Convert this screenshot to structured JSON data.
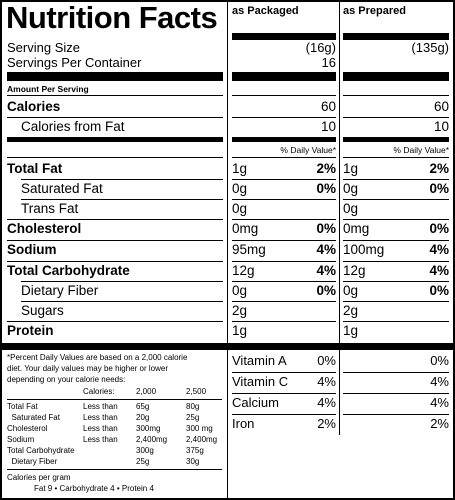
{
  "title": "Nutrition Facts",
  "columns": {
    "packaged": "as Packaged",
    "prepared": "as Prepared"
  },
  "serving": {
    "size_label": "Serving Size",
    "size_packaged": "(16g)",
    "size_prepared": "(135g)",
    "per_container_label": "Servings Per Container",
    "per_container_value": "16"
  },
  "amount_per_serving": "Amount Per Serving",
  "calories": {
    "label": "Calories",
    "packaged": "60",
    "prepared": "60"
  },
  "calories_fat": {
    "label": "Calories from Fat",
    "packaged": "10",
    "prepared": "10"
  },
  "dv_header": "% Daily Value*",
  "nutrients": [
    {
      "label": "Total Fat",
      "bold": true,
      "indent": false,
      "p_amt": "1g",
      "p_dv": "2%",
      "q_amt": "1g",
      "q_dv": "2%"
    },
    {
      "label": "Saturated Fat",
      "bold": false,
      "indent": true,
      "p_amt": "0g",
      "p_dv": "0%",
      "q_amt": "0g",
      "q_dv": "0%"
    },
    {
      "label": "Trans Fat",
      "bold": false,
      "indent": true,
      "p_amt": "0g",
      "p_dv": "",
      "q_amt": "0g",
      "q_dv": ""
    },
    {
      "label": "Cholesterol",
      "bold": true,
      "indent": false,
      "p_amt": "0mg",
      "p_dv": "0%",
      "q_amt": "0mg",
      "q_dv": "0%"
    },
    {
      "label": "Sodium",
      "bold": true,
      "indent": false,
      "p_amt": "95mg",
      "p_dv": "4%",
      "q_amt": "100mg",
      "q_dv": "4%"
    },
    {
      "label": "Total Carbohydrate",
      "bold": true,
      "indent": false,
      "p_amt": "12g",
      "p_dv": "4%",
      "q_amt": "12g",
      "q_dv": "4%"
    },
    {
      "label": "Dietary Fiber",
      "bold": false,
      "indent": true,
      "p_amt": "0g",
      "p_dv": "0%",
      "q_amt": "0g",
      "q_dv": "0%"
    },
    {
      "label": "Sugars",
      "bold": false,
      "indent": true,
      "p_amt": "2g",
      "p_dv": "",
      "q_amt": "2g",
      "q_dv": ""
    },
    {
      "label": "Protein",
      "bold": true,
      "indent": false,
      "p_amt": "1g",
      "p_dv": "",
      "q_amt": "1g",
      "q_dv": ""
    }
  ],
  "footnote": {
    "text1": "*Percent Daily Values are based on a 2,000 calorie",
    "text2": "diet. Your daily values may be higher or lower",
    "text3": "depending on your calorie needs:",
    "calories_label": "Calories:",
    "cal_2000": "2,000",
    "cal_2500": "2,500",
    "rows": [
      {
        "label": "Total Fat",
        "cmp": "Less than",
        "a": "65g",
        "b": "80g"
      },
      {
        "label": "  Saturated Fat",
        "cmp": "Less than",
        "a": "20g",
        "b": "25g"
      },
      {
        "label": "Cholesterol",
        "cmp": "Less than",
        "a": "300mg",
        "b": "300 mg"
      },
      {
        "label": "Sodium",
        "cmp": "Less than",
        "a": "2,400mg",
        "b": "2,400mg"
      },
      {
        "label": "Total Carbohydrate",
        "cmp": "",
        "a": "300g",
        "b": "375g"
      },
      {
        "label": "  Dietary Fiber",
        "cmp": "",
        "a": "25g",
        "b": "30g"
      }
    ],
    "cal_per_gram": "Calories per gram",
    "cal_per_gram_values": "Fat 9   •   Carbohydrate 4   •   Protein 4"
  },
  "vitamins": [
    {
      "label": "Vitamin A",
      "packaged": "0%",
      "prepared": "0%"
    },
    {
      "label": "Vitamin C",
      "packaged": "4%",
      "prepared": "4%"
    },
    {
      "label": "Calcium",
      "packaged": "4%",
      "prepared": "4%"
    },
    {
      "label": "Iron",
      "packaged": "2%",
      "prepared": "2%"
    }
  ]
}
